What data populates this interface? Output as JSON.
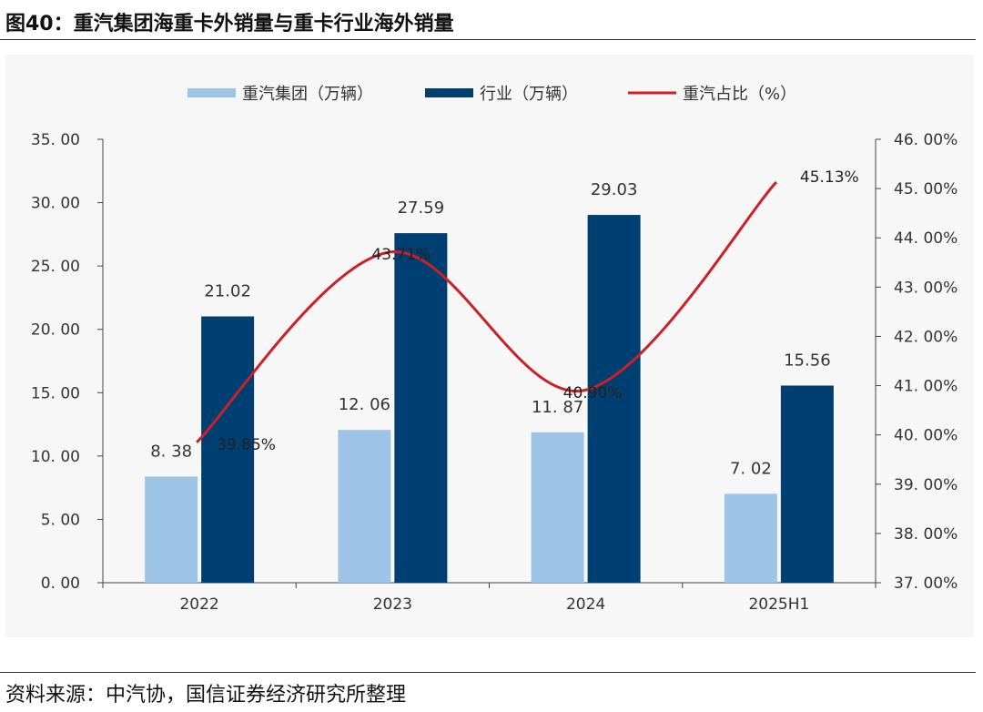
{
  "header": {
    "title": "图40：重汽集团海重卡外销量与重卡行业海外销量"
  },
  "footer": {
    "source": "资料来源：中汽协，国信证券经济研究所整理"
  },
  "chart_data": {
    "type": "bar",
    "title": "",
    "categories": [
      "2022",
      "2023",
      "2024",
      "2025H1"
    ],
    "legend_position": "top",
    "grid": false,
    "series": [
      {
        "name": "重汽集团（万辆）",
        "kind": "bar",
        "axis": "left",
        "color": "#9dc3e6",
        "values": [
          8.38,
          12.06,
          11.87,
          7.02
        ],
        "labels": [
          "8. 38",
          "12. 06",
          "11. 87",
          "7. 02"
        ]
      },
      {
        "name": "行业（万辆）",
        "kind": "bar",
        "axis": "left",
        "color": "#003f72",
        "values": [
          21.02,
          27.59,
          29.03,
          15.56
        ],
        "labels": [
          "21.02",
          "27.59",
          "29.03",
          "15.56"
        ]
      },
      {
        "name": "重汽占比（%）",
        "kind": "line",
        "axis": "right",
        "color": "#cc1f26",
        "values": [
          39.85,
          43.71,
          40.9,
          45.13
        ],
        "labels": [
          "39.85%",
          "43.71%",
          "40.90%",
          "45.13%"
        ]
      }
    ],
    "y_left": {
      "range": [
        0,
        35
      ],
      "ticks": [
        "0. 00",
        "5. 00",
        "10. 00",
        "15. 00",
        "20. 00",
        "25. 00",
        "30. 00",
        "35. 00"
      ]
    },
    "y_right": {
      "range": [
        37,
        46
      ],
      "ticks": [
        "37. 00%",
        "38. 00%",
        "39. 00%",
        "40. 00%",
        "41. 00%",
        "42. 00%",
        "43. 00%",
        "44. 00%",
        "45. 00%",
        "46. 00%"
      ]
    }
  }
}
